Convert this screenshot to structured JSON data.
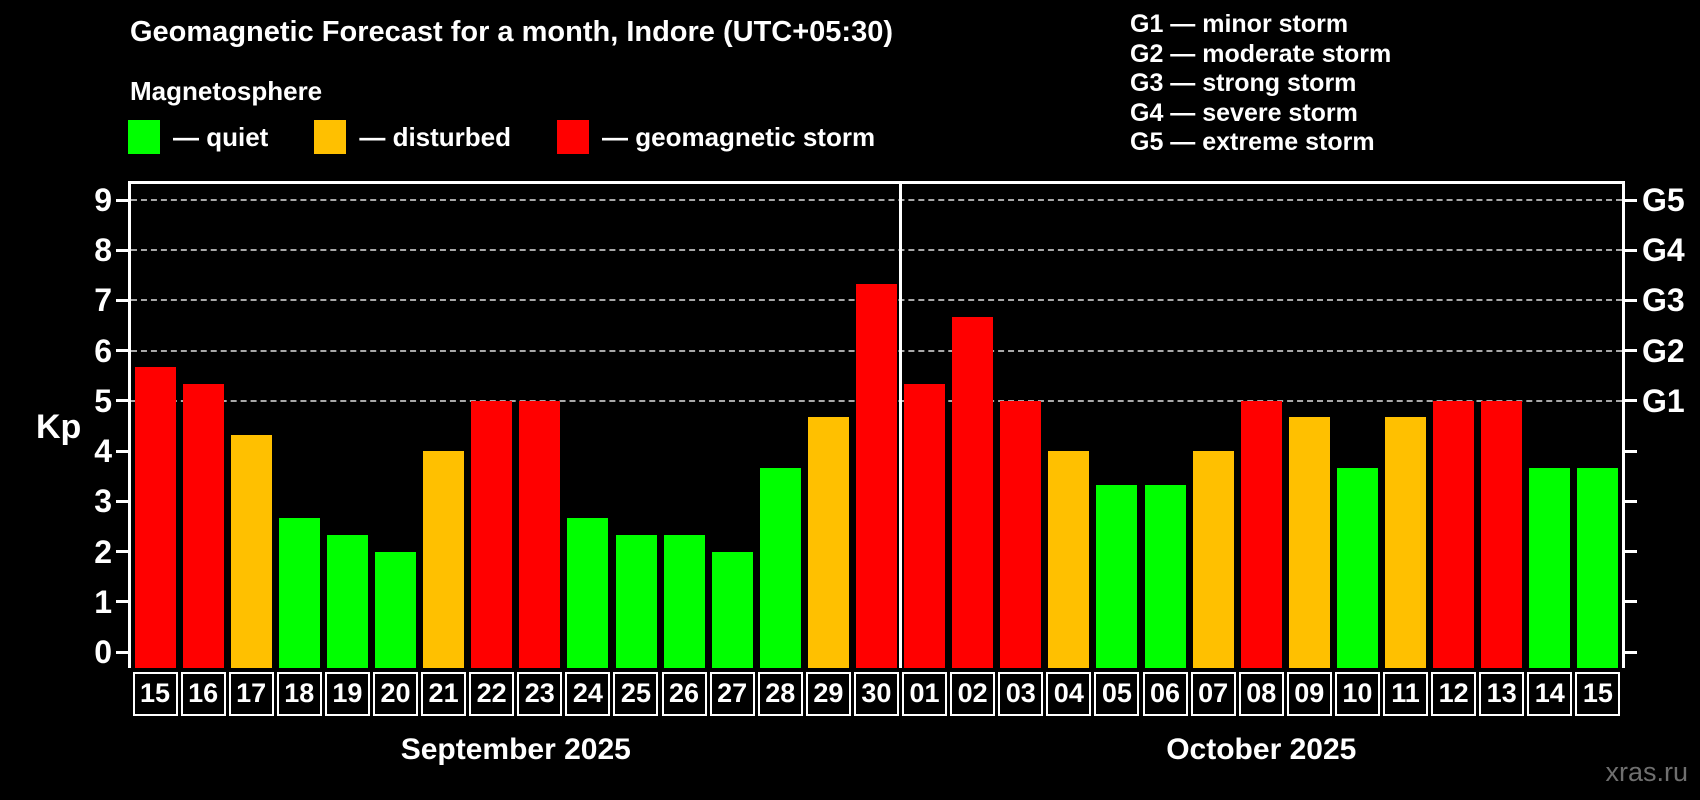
{
  "title": "Geomagnetic Forecast for a month, Indore (UTC+05:30)",
  "subtitle": "Magnetosphere",
  "legend": {
    "quiet": {
      "label": "— quiet",
      "color": "#00ff00"
    },
    "disturbed": {
      "label": "— disturbed",
      "color": "#ffc000"
    },
    "storm": {
      "label": "— geomagnetic storm",
      "color": "#ff0000"
    }
  },
  "g_scale_legend": [
    {
      "code": "G1",
      "label": "G1 — minor storm"
    },
    {
      "code": "G2",
      "label": "G2 — moderate storm"
    },
    {
      "code": "G3",
      "label": "G3 — strong storm"
    },
    {
      "code": "G4",
      "label": "G4 — severe storm"
    },
    {
      "code": "G5",
      "label": "G5 — extreme storm"
    }
  ],
  "axis": {
    "y_title": "Kp"
  },
  "watermark": "xras.ru",
  "chart_data": {
    "type": "bar",
    "title": "Geomagnetic Forecast for a month, Indore (UTC+05:30)",
    "ylabel": "Kp",
    "ylim": [
      0,
      9.33
    ],
    "y_ticks": [
      0,
      1,
      2,
      3,
      4,
      5,
      6,
      7,
      8,
      9
    ],
    "gridlines_at": [
      5,
      6,
      7,
      8,
      9
    ],
    "grid": "dashed horizontal at Kp 5-9 only",
    "legend_position": "top-left",
    "right_axis_labels": [
      {
        "kp": 5,
        "label": "G1"
      },
      {
        "kp": 6,
        "label": "G2"
      },
      {
        "kp": 7,
        "label": "G3"
      },
      {
        "kp": 8,
        "label": "G4"
      },
      {
        "kp": 9,
        "label": "G5"
      }
    ],
    "months": [
      {
        "label": "September 2025",
        "days": 16
      },
      {
        "label": "October 2025",
        "days": 15
      }
    ],
    "categories": [
      "15",
      "16",
      "17",
      "18",
      "19",
      "20",
      "21",
      "22",
      "23",
      "24",
      "25",
      "26",
      "27",
      "28",
      "29",
      "30",
      "01",
      "02",
      "03",
      "04",
      "05",
      "06",
      "07",
      "08",
      "09",
      "10",
      "11",
      "12",
      "13",
      "14",
      "15"
    ],
    "values": [
      5.67,
      5.33,
      4.33,
      2.67,
      2.33,
      2.0,
      4.0,
      5.0,
      5.0,
      2.67,
      2.33,
      2.33,
      2.0,
      3.67,
      4.67,
      7.33,
      5.33,
      6.67,
      5.0,
      4.0,
      3.33,
      3.33,
      4.0,
      5.0,
      4.67,
      3.67,
      4.67,
      5.0,
      5.0,
      3.67,
      3.67
    ],
    "status": [
      "storm",
      "storm",
      "disturbed",
      "quiet",
      "quiet",
      "quiet",
      "disturbed",
      "storm",
      "storm",
      "quiet",
      "quiet",
      "quiet",
      "quiet",
      "quiet",
      "disturbed",
      "storm",
      "storm",
      "storm",
      "storm",
      "disturbed",
      "quiet",
      "quiet",
      "disturbed",
      "storm",
      "disturbed",
      "quiet",
      "disturbed",
      "storm",
      "storm",
      "quiet",
      "quiet"
    ],
    "colors": {
      "quiet": "#00ff00",
      "disturbed": "#ffc000",
      "storm": "#ff0000"
    }
  }
}
